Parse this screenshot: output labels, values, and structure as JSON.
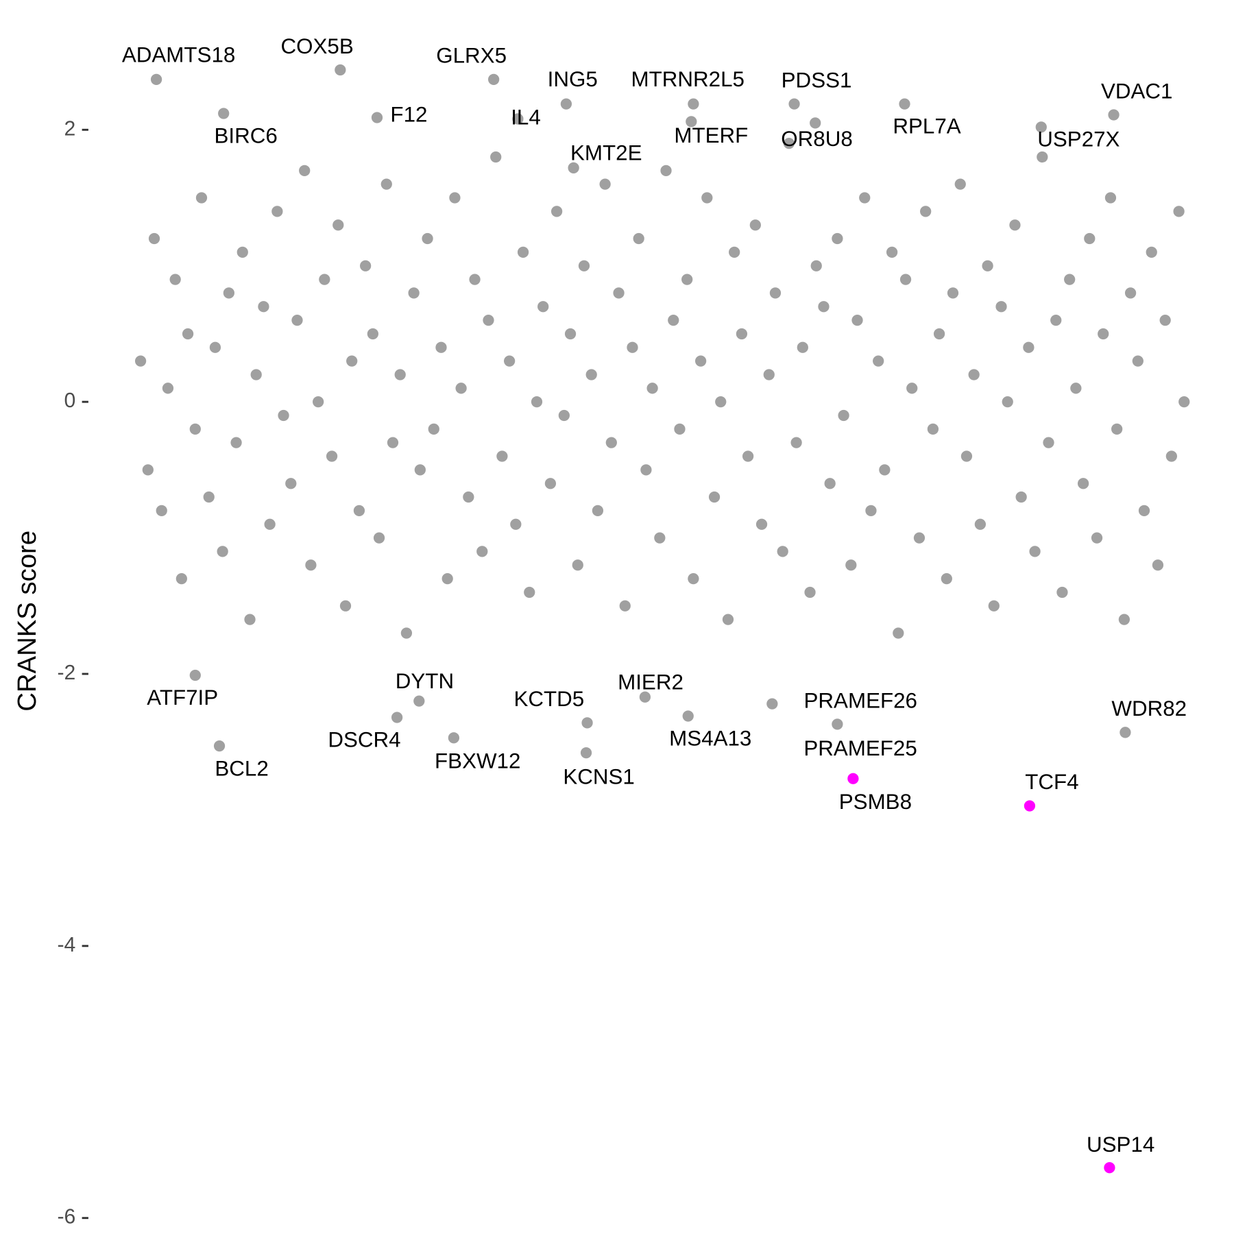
{
  "chart_data": {
    "type": "scatter",
    "y_label": "CRANKS score",
    "xlim": [
      0,
      1000
    ],
    "ylim": [
      -6.1,
      2.72
    ],
    "yticks": [
      2,
      0,
      -2,
      -4,
      -6
    ],
    "points": {
      "color": "#a0a0a0",
      "x": [
        5,
        12,
        18,
        25,
        31,
        38,
        44,
        50,
        57,
        63,
        70,
        76,
        83,
        89,
        96,
        102,
        109,
        115,
        122,
        128,
        135,
        141,
        148,
        154,
        161,
        167,
        174,
        180,
        187,
        193,
        200,
        206,
        213,
        219,
        226,
        232,
        239,
        245,
        252,
        258,
        265,
        271,
        278,
        284,
        291,
        297,
        304,
        310,
        317,
        323,
        330,
        336,
        343,
        349,
        356,
        362,
        369,
        375,
        382,
        388,
        395,
        401,
        408,
        414,
        421,
        427,
        434,
        440,
        447,
        453,
        460,
        466,
        473,
        479,
        486,
        492,
        499,
        505,
        512,
        518,
        525,
        531,
        538,
        544,
        551,
        557,
        564,
        570,
        577,
        583,
        590,
        596,
        603,
        609,
        616,
        622,
        629,
        635,
        642,
        648,
        655,
        661,
        668,
        674,
        681,
        687,
        694,
        700,
        707,
        713,
        720,
        726,
        733,
        739,
        746,
        752,
        759,
        765,
        772,
        778,
        785,
        791,
        798,
        804,
        811,
        817,
        824,
        830,
        837,
        843,
        850,
        856,
        863,
        869,
        876,
        882,
        889,
        895,
        902,
        908,
        915,
        921,
        928,
        934,
        941,
        947,
        954,
        960,
        967,
        973,
        980,
        986,
        993,
        998
      ],
      "y": [
        0.3,
        -0.5,
        1.2,
        -0.8,
        0.1,
        0.9,
        -1.3,
        0.5,
        -0.2,
        1.5,
        -0.7,
        0.4,
        -1.1,
        0.8,
        -0.3,
        1.1,
        -1.6,
        0.2,
        0.7,
        -0.9,
        1.4,
        -0.1,
        -0.6,
        0.6,
        1.7,
        -1.2,
        0.0,
        0.9,
        -0.4,
        1.3,
        -1.5,
        0.3,
        -0.8,
        1.0,
        0.5,
        -1.0,
        1.6,
        -0.3,
        0.2,
        -1.7,
        0.8,
        -0.5,
        1.2,
        -0.2,
        0.4,
        -1.3,
        1.5,
        0.1,
        -0.7,
        0.9,
        -1.1,
        0.6,
        1.8,
        -0.4,
        0.3,
        -0.9,
        1.1,
        -1.4,
        0.0,
        0.7,
        -0.6,
        1.4,
        -0.1,
        0.5,
        -1.2,
        1.0,
        0.2,
        -0.8,
        1.6,
        -0.3,
        0.8,
        -1.5,
        0.4,
        1.2,
        -0.5,
        0.1,
        -1.0,
        1.7,
        0.6,
        -0.2,
        0.9,
        -1.3,
        0.3,
        1.5,
        -0.7,
        0.0,
        -1.6,
        1.1,
        0.5,
        -0.4,
        1.3,
        -0.9,
        0.2,
        0.8,
        -1.1,
        1.9,
        -0.3,
        0.4,
        -1.4,
        1.0,
        0.7,
        -0.6,
        1.2,
        -0.1,
        -1.2,
        0.6,
        1.5,
        -0.8,
        0.3,
        -0.5,
        1.1,
        -1.7,
        0.9,
        0.1,
        -1.0,
        1.4,
        -0.2,
        0.5,
        -1.3,
        0.8,
        1.6,
        -0.4,
        0.2,
        -0.9,
        1.0,
        -1.5,
        0.7,
        0.0,
        1.3,
        -0.7,
        0.4,
        -1.1,
        1.8,
        -0.3,
        0.6,
        -1.4,
        0.9,
        0.1,
        -0.6,
        1.2,
        -1.0,
        0.5,
        1.5,
        -0.2,
        -1.6,
        0.8,
        0.3,
        -0.8,
        1.1,
        -1.2,
        0.6,
        -0.4,
        1.4,
        0.0
      ]
    },
    "labeled": {
      "labels": [
        "ADAMTS18",
        "COX5B",
        "GLRX5",
        "F12",
        "ING5",
        "MTRNR2L5",
        "PDSS1",
        "VDAC1",
        "BIRC6",
        "IL4",
        "KMT2E",
        "MTERF",
        "OR8U8",
        "RPL7A",
        "USP27X",
        "ATF7IP",
        "BCL2",
        "DYTN",
        "DSCR4",
        "FBXW12",
        "KCTD5",
        "KCNS1",
        "MIER2",
        "MS4A13",
        "PRAMEF26",
        "PRAMEF25",
        "PSMB8",
        "TCF4",
        "WDR82",
        "USP14"
      ],
      "x": [
        20,
        195,
        341,
        230,
        410,
        531,
        627,
        931,
        84,
        364,
        417,
        529,
        647,
        732,
        862,
        57,
        80,
        270,
        249,
        303,
        430,
        429,
        485,
        526,
        606,
        668,
        683,
        851,
        942,
        927
      ],
      "y": [
        2.37,
        2.44,
        2.37,
        2.09,
        2.19,
        2.19,
        2.19,
        2.11,
        2.12,
        2.08,
        1.72,
        2.06,
        2.05,
        2.19,
        2.02,
        -2.01,
        -2.53,
        -2.2,
        -2.32,
        -2.47,
        -2.36,
        -2.58,
        -2.17,
        -2.31,
        -2.22,
        -2.37,
        -2.77,
        -2.97,
        -2.43,
        -5.63
      ],
      "colors": [
        "#a0a0a0",
        "#a0a0a0",
        "#a0a0a0",
        "#a0a0a0",
        "#a0a0a0",
        "#a0a0a0",
        "#a0a0a0",
        "#a0a0a0",
        "#a0a0a0",
        "#a0a0a0",
        "#a0a0a0",
        "#a0a0a0",
        "#a0a0a0",
        "#a0a0a0",
        "#a0a0a0",
        "#a0a0a0",
        "#a0a0a0",
        "#a0a0a0",
        "#a0a0a0",
        "#a0a0a0",
        "#a0a0a0",
        "#a0a0a0",
        "#a0a0a0",
        "#a0a0a0",
        "#a0a0a0",
        "#a0a0a0",
        "#ff00ff",
        "#ff00ff",
        "#a0a0a0",
        "#ff00ff"
      ]
    }
  }
}
